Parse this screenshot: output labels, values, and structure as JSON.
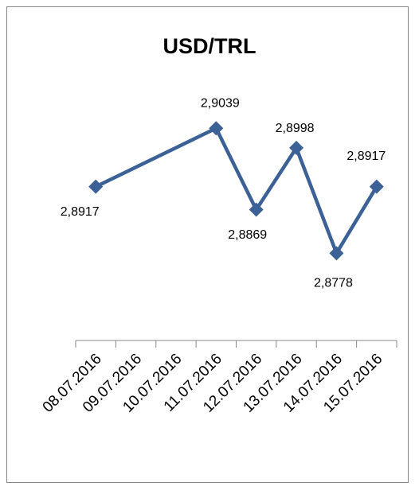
{
  "chart_data": {
    "type": "line",
    "title": "USD/TRL",
    "xticks": [
      "08.07.2016",
      "09.07.2016",
      "10.07.2016",
      "11.07.2016",
      "12.07.2016",
      "13.07.2016",
      "14.07.2016",
      "15.07.2016"
    ],
    "x": [
      "08.07.2016",
      "11.07.2016",
      "12.07.2016",
      "13.07.2016",
      "14.07.2016",
      "15.07.2016"
    ],
    "values": [
      2.8917,
      2.9039,
      2.8869,
      2.8998,
      2.8778,
      2.8917
    ],
    "value_labels": [
      "2,8917",
      "2,9039",
      "2,8869",
      "2,8998",
      "2,8778",
      "2,8917"
    ],
    "color": "#3b6196",
    "ylim": [
      2.86,
      2.91
    ],
    "grid": false
  }
}
